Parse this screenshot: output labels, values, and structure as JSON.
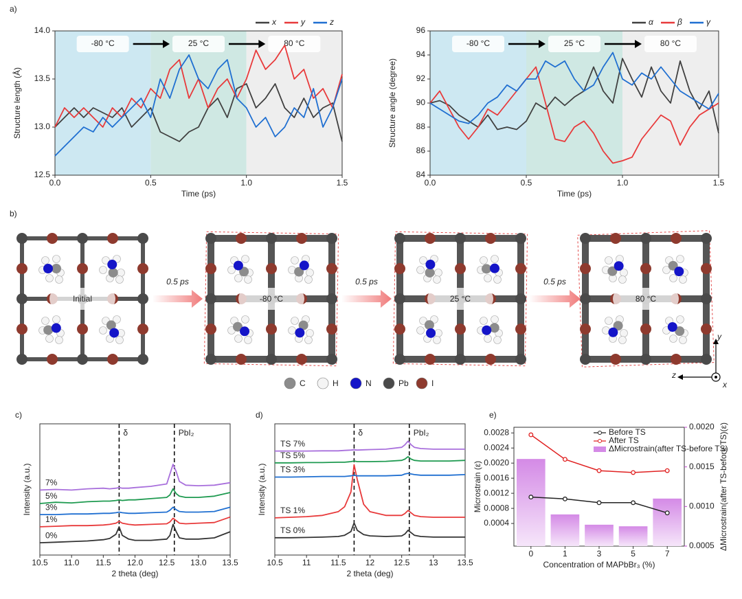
{
  "chart_data": [
    {
      "type": "line",
      "panel_label": "a)",
      "ylabel": "Structure length (Å)",
      "xlabel": "Time (ps)",
      "xlim": [
        0,
        1.5
      ],
      "xticks": [
        {
          "value": 0,
          "label": "0.0"
        },
        0.5,
        {
          "value": 1,
          "label": "1.0"
        },
        1.5
      ],
      "ylim": [
        12.5,
        14.0
      ],
      "yticks": [
        12.5,
        {
          "value": 13,
          "label": "13.0"
        },
        13.5,
        {
          "value": 14,
          "label": "14.0"
        }
      ],
      "legend": "top-right",
      "regions": [
        {
          "label": "-80 °C",
          "from": 0,
          "to": 0.5,
          "color": "#cde8f2"
        },
        {
          "label": "25 °C",
          "from": 0.5,
          "to": 1.0,
          "color": "#cfe8e3"
        },
        {
          "label": "80 °C",
          "from": 1.0,
          "to": 1.5,
          "color": "#eeeeee"
        }
      ],
      "x": [
        0,
        0.05,
        0.1,
        0.15,
        0.2,
        0.25,
        0.3,
        0.35,
        0.4,
        0.45,
        0.5,
        0.55,
        0.6,
        0.65,
        0.7,
        0.75,
        0.8,
        0.85,
        0.9,
        0.95,
        1.0,
        1.05,
        1.1,
        1.15,
        1.2,
        1.25,
        1.3,
        1.35,
        1.4,
        1.45,
        1.5
      ],
      "series": [
        {
          "name": "x",
          "color": "#404040",
          "values": [
            13.0,
            13.1,
            13.2,
            13.1,
            13.2,
            13.15,
            13.1,
            13.2,
            13.0,
            13.1,
            13.2,
            12.95,
            12.9,
            12.85,
            12.95,
            13.0,
            13.2,
            13.3,
            13.1,
            13.4,
            13.45,
            13.2,
            13.3,
            13.45,
            13.2,
            13.1,
            13.3,
            13.1,
            13.2,
            13.25,
            12.85
          ]
        },
        {
          "name": "y",
          "color": "#e8393a",
          "values": [
            13.0,
            13.2,
            13.1,
            13.2,
            13.1,
            13.0,
            13.2,
            13.1,
            13.3,
            13.2,
            13.4,
            13.3,
            13.6,
            13.7,
            13.3,
            13.5,
            13.2,
            13.4,
            13.5,
            13.3,
            13.5,
            13.8,
            13.6,
            13.7,
            13.85,
            13.5,
            13.6,
            13.3,
            13.4,
            13.2,
            13.55
          ]
        },
        {
          "name": "z",
          "color": "#1f6fd1",
          "values": [
            12.7,
            12.8,
            12.9,
            13.0,
            12.95,
            13.1,
            13.0,
            13.1,
            13.2,
            13.3,
            13.1,
            13.5,
            13.3,
            13.6,
            13.75,
            13.5,
            13.4,
            13.6,
            13.7,
            13.3,
            13.2,
            13.0,
            13.1,
            12.9,
            13.0,
            13.2,
            13.1,
            13.4,
            13.0,
            13.2,
            13.5
          ]
        }
      ]
    },
    {
      "type": "line",
      "ylabel": "Structure angle (degree)",
      "xlabel": "Time (ps)",
      "xlim": [
        0,
        1.5
      ],
      "xticks": [
        {
          "value": 0,
          "label": "0.0"
        },
        0.5,
        {
          "value": 1,
          "label": "1.0"
        },
        1.5
      ],
      "ylim": [
        84,
        96
      ],
      "yticks": [
        84,
        86,
        88,
        90,
        92,
        94,
        96
      ],
      "legend": "top-right",
      "regions": [
        {
          "label": "-80 °C",
          "from": 0,
          "to": 0.5,
          "color": "#cde8f2"
        },
        {
          "label": "25 °C",
          "from": 0.5,
          "to": 1.0,
          "color": "#cfe8e3"
        },
        {
          "label": "80 °C",
          "from": 1.0,
          "to": 1.5,
          "color": "#eeeeee"
        }
      ],
      "x": [
        0,
        0.05,
        0.1,
        0.15,
        0.2,
        0.25,
        0.3,
        0.35,
        0.4,
        0.45,
        0.5,
        0.55,
        0.6,
        0.65,
        0.7,
        0.75,
        0.8,
        0.85,
        0.9,
        0.95,
        1.0,
        1.05,
        1.1,
        1.15,
        1.2,
        1.25,
        1.3,
        1.35,
        1.4,
        1.45,
        1.5
      ],
      "series": [
        {
          "name": "α",
          "color": "#404040",
          "values": [
            90,
            90.2,
            89.8,
            89,
            88.5,
            88,
            89,
            87.8,
            88,
            87.8,
            88.5,
            90,
            89.5,
            90.5,
            89.8,
            90.5,
            91,
            93,
            91,
            90,
            93.7,
            92,
            90.5,
            93,
            91,
            90,
            93.5,
            91,
            89.5,
            91,
            87.5
          ]
        },
        {
          "name": "β",
          "color": "#e8393a",
          "values": [
            90,
            91,
            89.5,
            88,
            87,
            88,
            89.5,
            89,
            90,
            91,
            92,
            93,
            90,
            87,
            86.8,
            88,
            88.5,
            87.5,
            86,
            85,
            85.2,
            85.5,
            87,
            88,
            89,
            88.5,
            86.5,
            88,
            89,
            89.5,
            90
          ]
        },
        {
          "name": "γ",
          "color": "#1f6fd1",
          "values": [
            90,
            89.5,
            89,
            88.5,
            88.3,
            89,
            90,
            90.5,
            91.5,
            91,
            92,
            92,
            93.5,
            93,
            93.5,
            92,
            91,
            91.5,
            93,
            94.2,
            92,
            91.5,
            92.5,
            92,
            93,
            92,
            91,
            90.5,
            90,
            89.5,
            90.8
          ]
        }
      ]
    },
    {
      "type": "line",
      "panel_label": "c)",
      "ylabel": "Intensity (a.u.)",
      "xlabel": "2 theta (deg)",
      "xlim": [
        10.5,
        13.5
      ],
      "xticks": [
        10.5,
        {
          "value": 11,
          "label": "11.0"
        },
        11.5,
        {
          "value": 12,
          "label": "12.0"
        },
        12.5,
        {
          "value": 13,
          "label": "13.0"
        },
        13.5
      ],
      "ylim": [
        0,
        10.7
      ],
      "legend": "inline",
      "annotations": [
        {
          "x": 11.75,
          "label": "δ"
        },
        {
          "x": 12.62,
          "label": "PbI₂"
        }
      ],
      "x": [
        10.5,
        10.75,
        11.0,
        11.25,
        11.5,
        11.6,
        11.7,
        11.75,
        11.8,
        11.9,
        12.0,
        12.25,
        12.5,
        12.55,
        12.6,
        12.65,
        12.7,
        12.8,
        13.0,
        13.25,
        13.5
      ],
      "series": [
        {
          "name": "0%",
          "color": "#333333",
          "values": [
            1.0,
            1.05,
            1.1,
            1.15,
            1.25,
            1.35,
            1.7,
            2.3,
            1.6,
            1.3,
            1.2,
            1.2,
            1.3,
            1.6,
            2.5,
            1.9,
            1.4,
            1.3,
            1.3,
            1.4,
            1.9
          ]
        },
        {
          "name": "1%",
          "color": "#e8393a",
          "values": [
            2.3,
            2.35,
            2.4,
            2.4,
            2.45,
            2.5,
            2.6,
            2.75,
            2.6,
            2.5,
            2.45,
            2.5,
            2.55,
            2.7,
            3.0,
            2.8,
            2.6,
            2.55,
            2.6,
            2.65,
            3.1
          ]
        },
        {
          "name": "3%",
          "color": "#1f6fd1",
          "values": [
            3.3,
            3.3,
            3.35,
            3.35,
            3.4,
            3.4,
            3.45,
            3.5,
            3.45,
            3.4,
            3.4,
            3.45,
            3.5,
            3.65,
            3.9,
            3.7,
            3.55,
            3.5,
            3.5,
            3.55,
            3.9
          ]
        },
        {
          "name": "5%",
          "color": "#1e9a50",
          "values": [
            4.2,
            4.3,
            4.25,
            4.35,
            4.4,
            4.4,
            4.45,
            4.5,
            4.45,
            4.5,
            4.5,
            4.6,
            4.7,
            4.9,
            5.4,
            5.0,
            4.8,
            4.7,
            4.7,
            4.8,
            5.1
          ]
        },
        {
          "name": "7%",
          "color": "#a86fdc",
          "values": [
            5.3,
            5.35,
            5.3,
            5.4,
            5.45,
            5.4,
            5.45,
            5.5,
            5.45,
            5.45,
            5.5,
            5.6,
            5.8,
            6.6,
            7.4,
            6.8,
            6.0,
            5.7,
            5.65,
            5.7,
            5.9
          ]
        }
      ]
    },
    {
      "type": "line",
      "panel_label": "d)",
      "ylabel": "Intensity (a.u.)",
      "xlabel": "2 theta (deg)",
      "xlim": [
        10.5,
        13.5
      ],
      "xticks": [
        10.5,
        11,
        11.5,
        12,
        12.5,
        13,
        13.5
      ],
      "ylim": [
        -0.6,
        10
      ],
      "legend": "inline",
      "annotations": [
        {
          "x": 11.75,
          "label": "δ"
        },
        {
          "x": 12.62,
          "label": "PbI₂"
        }
      ],
      "x": [
        10.5,
        10.75,
        11.0,
        11.25,
        11.5,
        11.6,
        11.7,
        11.75,
        11.8,
        11.9,
        12.0,
        12.25,
        12.5,
        12.55,
        12.6,
        12.65,
        12.7,
        12.8,
        13.0,
        13.25,
        13.5
      ],
      "series": [
        {
          "name": "TS 0%",
          "color": "#333333",
          "values": [
            0.8,
            0.8,
            0.82,
            0.85,
            0.9,
            1.0,
            1.3,
            2.0,
            1.4,
            1.05,
            0.95,
            0.9,
            0.95,
            1.1,
            1.4,
            1.2,
            1.0,
            0.9,
            0.85,
            0.85,
            0.85
          ]
        },
        {
          "name": "TS 1%",
          "color": "#e8393a",
          "values": [
            2.4,
            2.45,
            2.5,
            2.6,
            2.9,
            3.3,
            4.5,
            6.7,
            5.5,
            3.5,
            2.9,
            2.6,
            2.6,
            2.75,
            3.0,
            2.8,
            2.6,
            2.5,
            2.45,
            2.45,
            2.45
          ]
        },
        {
          "name": "TS 3%",
          "color": "#1f6fd1",
          "values": [
            5.7,
            5.7,
            5.72,
            5.75,
            5.75,
            5.75,
            5.8,
            5.85,
            5.8,
            5.8,
            5.8,
            5.8,
            5.85,
            5.95,
            6.0,
            5.95,
            5.9,
            5.85,
            5.85,
            5.85,
            5.9
          ]
        },
        {
          "name": "TS 5%",
          "color": "#1e9a50",
          "values": [
            6.85,
            6.85,
            6.87,
            6.87,
            6.9,
            6.9,
            6.95,
            7.0,
            6.95,
            6.95,
            6.95,
            6.97,
            7.05,
            7.15,
            7.35,
            7.15,
            7.05,
            7.0,
            7.0,
            7.0,
            7.05
          ]
        },
        {
          "name": "TS 7%",
          "color": "#a86fdc",
          "values": [
            7.8,
            7.8,
            7.8,
            7.82,
            7.82,
            7.85,
            7.88,
            7.9,
            7.88,
            7.9,
            7.92,
            7.95,
            8.1,
            8.3,
            8.6,
            8.3,
            8.1,
            8.0,
            7.95,
            7.95,
            7.95
          ]
        }
      ]
    },
    {
      "type": "combo",
      "panel_label": "e)",
      "ylabel": "Microstrain (ε)",
      "y2label": "ΔMicrostrain(after TS-before TS)(ε)",
      "y2_color": "#c040d0",
      "xlabel": "Concentration of MAPbBr₃ (%)",
      "categories": [
        "0",
        "1",
        "3",
        "5",
        "7"
      ],
      "ylim": [
        -0.0002,
        0.00295
      ],
      "yticks": [
        0.0004,
        0.0008,
        0.0012,
        0.0016,
        {
          "value": 0.002,
          "label": "0.0020"
        },
        0.0024,
        0.0028
      ],
      "y2lim": [
        0.0005,
        0.002
      ],
      "y2ticks": [
        0.0005,
        {
          "value": 0.001,
          "label": "0.0010"
        },
        0.0015,
        {
          "value": 0.002,
          "label": "0.0020"
        }
      ],
      "legend": "upper-right",
      "series": [
        {
          "name": "Before TS",
          "type": "line",
          "color": "#222222",
          "values": [
            0.0011,
            0.00105,
            0.00095,
            0.00095,
            0.00068
          ]
        },
        {
          "name": "After TS",
          "type": "line",
          "color": "#e02020",
          "values": [
            0.00275,
            0.0021,
            0.0018,
            0.00175,
            0.0018
          ]
        },
        {
          "name": "ΔMicrostrain(after TS-before TS)",
          "type": "bar",
          "axis": "y2",
          "color": "#d48ae6",
          "values": [
            0.0016,
            0.0009,
            0.00077,
            0.00075,
            0.0011
          ]
        }
      ]
    }
  ],
  "diagram": {
    "panel_label": "b)",
    "states": [
      "Initial",
      "-80 °C",
      "25 °C",
      "80 °C"
    ],
    "steps": [
      "0.5 ps",
      "0.5 ps",
      "0.5 ps"
    ],
    "atoms": [
      {
        "label": "C",
        "color": "#8c8c8c"
      },
      {
        "label": "H",
        "color": "#f4f4f4"
      },
      {
        "label": "N",
        "color": "#1414c8"
      },
      {
        "label": "Pb",
        "color": "#4a4a4a"
      },
      {
        "label": "I",
        "color": "#8e3a2e"
      }
    ],
    "axes": [
      "y",
      "z",
      "x"
    ]
  }
}
